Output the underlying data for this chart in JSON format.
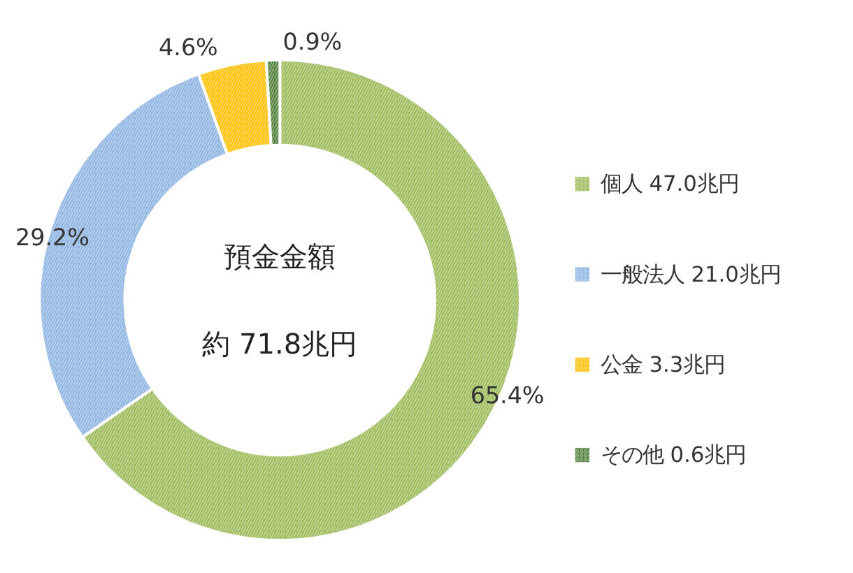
{
  "chart_data": {
    "type": "donut",
    "categories": [
      "個人 47.0兆円",
      "一般法人 21.0兆円",
      "公金 3.3兆円",
      "その他 0.6兆円"
    ],
    "values": [
      65.4,
      29.2,
      4.6,
      0.9
    ],
    "value_labels": [
      "65.4%",
      "29.2%",
      "4.6%",
      "0.9%"
    ],
    "colors": [
      "#9bbb59",
      "#8db3e2",
      "#ffc000",
      "#4f7f3a"
    ],
    "annotations": [
      "預金金額",
      "約 71.8兆円"
    ],
    "legend": "right"
  }
}
